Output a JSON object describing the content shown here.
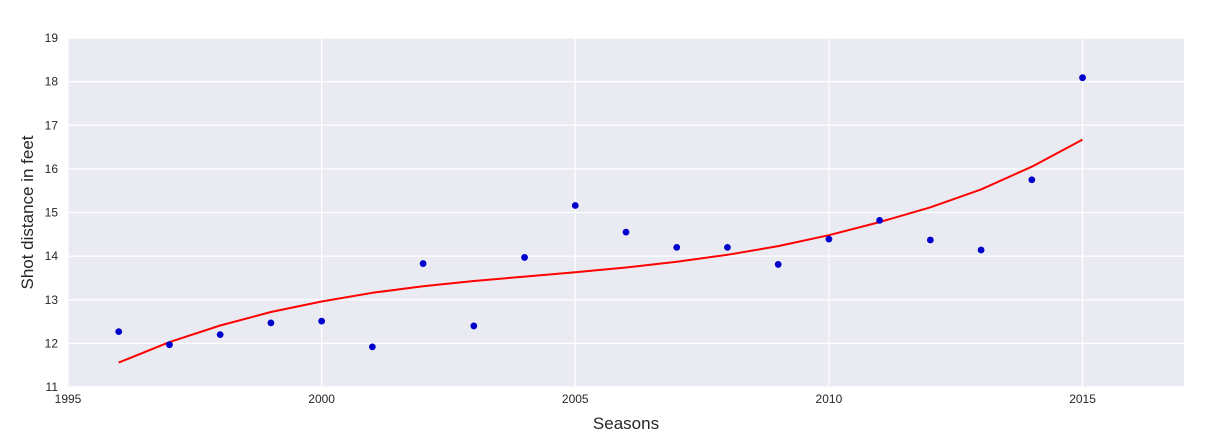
{
  "chart_data": {
    "type": "scatter",
    "xlabel": "Seasons",
    "ylabel": "Shot distance in feet",
    "xlim": [
      1995,
      2017
    ],
    "ylim": [
      11,
      19
    ],
    "grid": true,
    "x_ticks": [
      "1995",
      "2000",
      "2005",
      "2010",
      "2015"
    ],
    "y_ticks": [
      "11",
      "12",
      "13",
      "14",
      "15",
      "16",
      "17",
      "18",
      "19"
    ],
    "series": [
      {
        "kind": "scatter",
        "color": "#0000cc",
        "x": [
          1996,
          1997,
          1998,
          1999,
          2000,
          2001,
          2002,
          2003,
          2004,
          2005,
          2006,
          2007,
          2008,
          2009,
          2010,
          2011,
          2012,
          2013,
          2014,
          2015
        ],
        "y": [
          12.27,
          11.97,
          12.2,
          12.47,
          12.51,
          11.92,
          13.83,
          12.4,
          13.97,
          15.16,
          14.55,
          14.2,
          14.2,
          13.81,
          14.39,
          14.82,
          14.37,
          14.14,
          15.75,
          18.09
        ]
      },
      {
        "kind": "line",
        "color": "#ff0000",
        "x": [
          1996,
          1997,
          1998,
          1999,
          2000,
          2001,
          2002,
          2003,
          2004,
          2005,
          2006,
          2007,
          2008,
          2009,
          2010,
          2011,
          2012,
          2013,
          2014,
          2015
        ],
        "y": [
          11.56,
          12.03,
          12.41,
          12.72,
          12.96,
          13.16,
          13.31,
          13.43,
          13.53,
          13.63,
          13.74,
          13.87,
          14.03,
          14.23,
          14.48,
          14.78,
          15.12,
          15.53,
          16.05,
          16.67
        ]
      }
    ]
  },
  "colors": {
    "plot_background": "#eaeaf2",
    "grid": "#ffffff",
    "text": "#262626"
  }
}
